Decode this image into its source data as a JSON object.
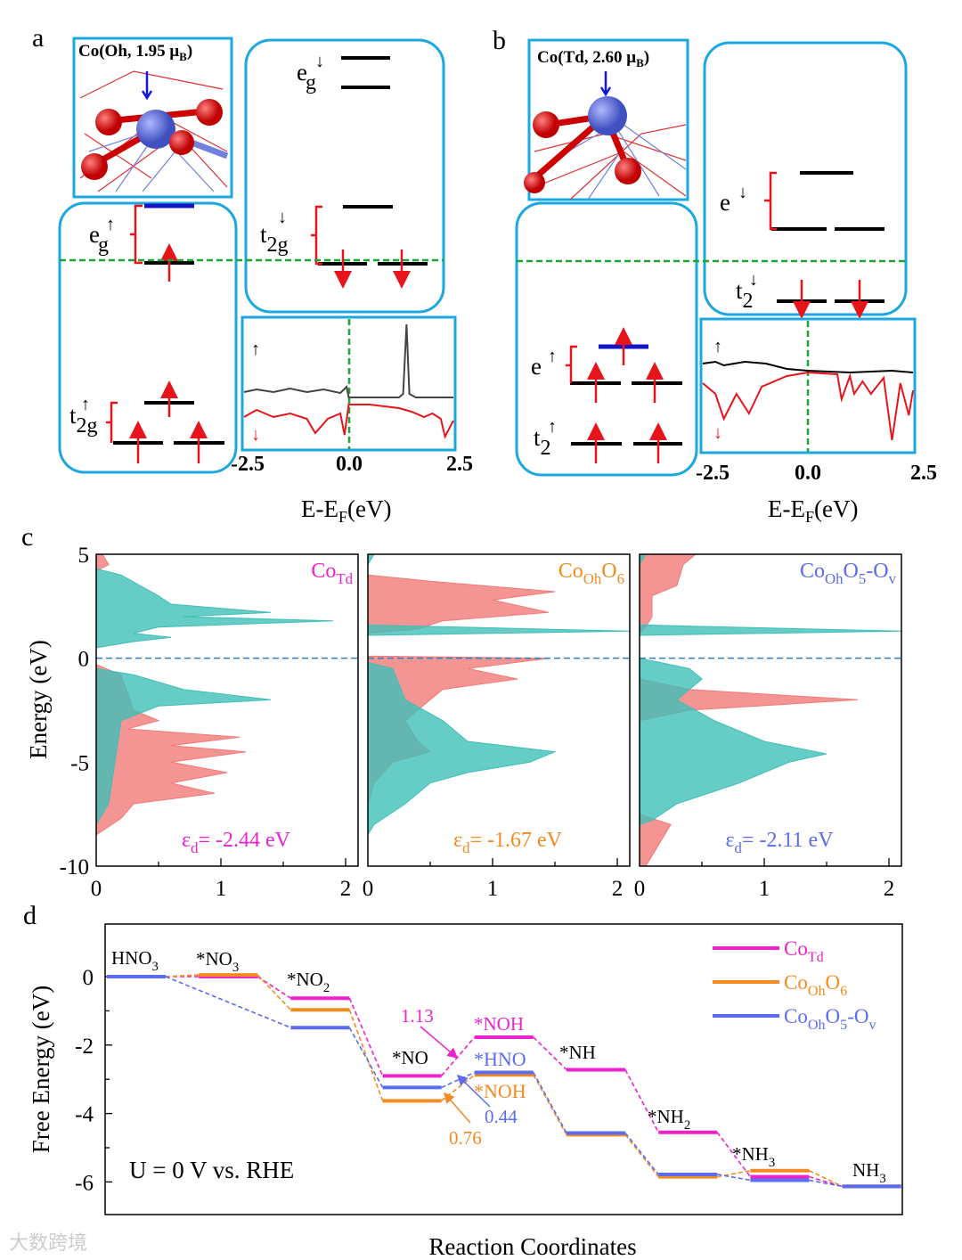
{
  "colors": {
    "box": "#1ba8e0",
    "fermi": "#1aa532",
    "spin_up_dos": "#3fbfb8",
    "spin_down_dos": "#f27a78",
    "CoTd": "#ee22cc",
    "CoOhO6": "#f48a20",
    "CoOhO5Ov": "#5b6cf0"
  },
  "panel_a": {
    "letter": "a",
    "structure_label": {
      "main": "Co(Oh, 1.95 μ",
      "sub": "B",
      "end": ")"
    },
    "levels": {
      "eg_up": {
        "main": "e",
        "sub": "g",
        "spin": "↑"
      },
      "t2g_up": {
        "main": "t",
        "sub": "2g",
        "spin": "↑"
      },
      "eg_down": {
        "main": "e",
        "sub": "g",
        "spin": "↓"
      },
      "t2g_down": {
        "main": "t",
        "sub": "2g",
        "spin": "↓"
      }
    },
    "inset": {
      "up_marker": "↑",
      "down_marker": "↓",
      "ticks": [
        "-2.5",
        "0.0",
        "2.5"
      ],
      "xlabel": {
        "main": "E-E",
        "sub": "F",
        "end": "(eV)"
      }
    }
  },
  "panel_b": {
    "letter": "b",
    "structure_label": {
      "main": "Co(Td, 2.60 μ",
      "sub": "B",
      "end": ")"
    },
    "levels": {
      "e_up": {
        "main": "e",
        "spin": "↑"
      },
      "t2_up": {
        "main": "t",
        "sub": "2",
        "spin": "↑"
      },
      "e_down": {
        "main": "e",
        "spin": "↓"
      },
      "t2_down": {
        "main": "t",
        "sub": "2",
        "spin": "↓"
      }
    },
    "inset": {
      "up_marker": "↑",
      "down_marker": "↓",
      "ticks": [
        "-2.5",
        "0.0",
        "2.5"
      ],
      "xlabel": {
        "main": "E-E",
        "sub": "F",
        "end": "(eV)"
      }
    }
  },
  "panel_c_letter": "c",
  "panel_d_letter": "d",
  "watermark": "大数跨境",
  "chart_data": [
    {
      "id": "a_inset",
      "type": "line",
      "xlabel": "E-EF(eV)",
      "xlim": [
        -2.5,
        2.5
      ],
      "series": [
        {
          "name": "spin up",
          "color": "#444444",
          "points": [
            [
              -2.5,
              0.6
            ],
            [
              -2.2,
              0.75
            ],
            [
              -1.8,
              0.6
            ],
            [
              -1.4,
              0.8
            ],
            [
              -1,
              0.6
            ],
            [
              -0.6,
              0.75
            ],
            [
              -0.2,
              0.55
            ],
            [
              -0.05,
              0.9
            ],
            [
              0,
              0.3
            ],
            [
              0.5,
              0.3
            ],
            [
              1.2,
              0.3
            ],
            [
              1.3,
              0.5
            ],
            [
              1.38,
              4.4
            ],
            [
              1.45,
              0.5
            ],
            [
              1.6,
              0.3
            ],
            [
              2,
              0.3
            ],
            [
              2.5,
              0.3
            ]
          ]
        },
        {
          "name": "spin down",
          "color": "#e8141b",
          "points": [
            [
              -2.5,
              -0.8
            ],
            [
              -2.2,
              -0.4
            ],
            [
              -1.8,
              -0.8
            ],
            [
              -1.4,
              -0.6
            ],
            [
              -1,
              -0.9
            ],
            [
              -0.8,
              -1.7
            ],
            [
              -0.5,
              -0.9
            ],
            [
              -0.2,
              -0.6
            ],
            [
              -0.1,
              -1.8
            ],
            [
              0,
              -0.1
            ],
            [
              0.5,
              -0.1
            ],
            [
              1.2,
              -0.3
            ],
            [
              1.5,
              -0.5
            ],
            [
              1.8,
              -0.8
            ],
            [
              2.0,
              -0.6
            ],
            [
              2.2,
              -0.9
            ],
            [
              2.3,
              -1.9
            ],
            [
              2.5,
              -1.0
            ]
          ]
        }
      ]
    },
    {
      "id": "b_inset",
      "type": "line",
      "xlabel": "E-EF(eV)",
      "xlim": [
        -2.5,
        2.5
      ],
      "series": [
        {
          "name": "spin up",
          "color": "#000000",
          "points": [
            [
              -2.5,
              0.5
            ],
            [
              -2.2,
              0.6
            ],
            [
              -2,
              0.4
            ],
            [
              -1.5,
              0.6
            ],
            [
              -1,
              0.5
            ],
            [
              -0.5,
              0.2
            ],
            [
              0,
              0.1
            ],
            [
              1,
              0
            ],
            [
              2,
              0.1
            ],
            [
              2.5,
              0
            ]
          ]
        },
        {
          "name": "spin down",
          "color": "#e8141b",
          "points": [
            [
              -2.5,
              -0.6
            ],
            [
              -2.2,
              -1.2
            ],
            [
              -2,
              -2.6
            ],
            [
              -1.7,
              -1.2
            ],
            [
              -1.4,
              -2.3
            ],
            [
              -1.1,
              -0.8
            ],
            [
              -0.5,
              -0.2
            ],
            [
              0,
              0
            ],
            [
              0.7,
              -0.1
            ],
            [
              0.8,
              -1.5
            ],
            [
              1,
              -0.2
            ],
            [
              1.1,
              -1.2
            ],
            [
              1.3,
              -0.5
            ],
            [
              1.5,
              -1.2
            ],
            [
              1.8,
              -0.3
            ],
            [
              2,
              -3.8
            ],
            [
              2.2,
              -0.6
            ],
            [
              2.4,
              -2.4
            ],
            [
              2.5,
              -1
            ]
          ]
        }
      ]
    },
    {
      "id": "c",
      "type": "area",
      "ylabel": "Energy (eV)",
      "ylim": [
        -10,
        5
      ],
      "xlim": [
        0,
        2
      ],
      "yticks": [
        "5",
        "0",
        "-5",
        "-10"
      ],
      "xticks": [
        "0",
        "1",
        "2"
      ],
      "panels": [
        {
          "title": {
            "main": "Co",
            "sub": "Td",
            "tail": "",
            "sub2": "",
            "end": ""
          },
          "color": "#ee22cc",
          "ed": {
            "eps": "ε",
            "sub": "d",
            "value": "= -2.44 eV"
          },
          "up": [
            [
              4.3,
              0
            ],
            [
              4,
              0.2
            ],
            [
              3.5,
              0.35
            ],
            [
              3,
              0.5
            ],
            [
              2.6,
              0.6
            ],
            [
              2.2,
              1.4
            ],
            [
              2.0,
              0.7
            ],
            [
              1.8,
              1.9
            ],
            [
              1.5,
              0.5
            ],
            [
              1.2,
              0.3
            ],
            [
              1.0,
              0.6
            ],
            [
              0.8,
              0.3
            ],
            [
              0.5,
              0
            ],
            [
              -0.5,
              0
            ],
            [
              -0.8,
              0.3
            ],
            [
              -1.5,
              0.7
            ],
            [
              -2.0,
              1.4
            ],
            [
              -2.3,
              0.5
            ],
            [
              -3,
              0.2
            ],
            [
              -5,
              0.15
            ],
            [
              -7,
              0.1
            ],
            [
              -8,
              0
            ]
          ],
          "down": [
            [
              5,
              0.05
            ],
            [
              4.5,
              0.1
            ],
            [
              4.2,
              0
            ],
            [
              -0.3,
              0
            ],
            [
              -0.8,
              0.2
            ],
            [
              -2.5,
              0.3
            ],
            [
              -3.0,
              0.5
            ],
            [
              -3.4,
              0.25
            ],
            [
              -3.8,
              1.15
            ],
            [
              -4.2,
              0.6
            ],
            [
              -4.5,
              1.2
            ],
            [
              -5,
              0.6
            ],
            [
              -5.5,
              1.05
            ],
            [
              -6,
              0.6
            ],
            [
              -6.5,
              0.95
            ],
            [
              -7,
              0.3
            ],
            [
              -7.7,
              0.2
            ],
            [
              -8.5,
              0
            ]
          ]
        },
        {
          "title": {
            "main": "Co",
            "sub": "Oh",
            "tail": "O",
            "sub2": "6",
            "end": ""
          },
          "color": "#f48a20",
          "ed": {
            "eps": "ε",
            "sub": "d",
            "value": "= -1.67 eV"
          },
          "up": [
            [
              5,
              0.05
            ],
            [
              4.5,
              0
            ],
            [
              1.6,
              0
            ],
            [
              1.3,
              2.1
            ],
            [
              1.1,
              0
            ],
            [
              -0.2,
              0
            ],
            [
              -0.5,
              0.2
            ],
            [
              -2,
              0.3
            ],
            [
              -3,
              0.6
            ],
            [
              -4,
              0.8
            ],
            [
              -4.5,
              1.5
            ],
            [
              -5,
              1.3
            ],
            [
              -5.5,
              0.8
            ],
            [
              -6,
              0.5
            ],
            [
              -7,
              0.3
            ],
            [
              -8,
              0.05
            ],
            [
              -8.5,
              0
            ]
          ],
          "down": [
            [
              4,
              0
            ],
            [
              3.7,
              0.5
            ],
            [
              3.2,
              1.5
            ],
            [
              2.8,
              1.0
            ],
            [
              2.2,
              1.45
            ],
            [
              1.8,
              0.6
            ],
            [
              1.4,
              0.4
            ],
            [
              1.2,
              0
            ],
            [
              0.1,
              0
            ],
            [
              0,
              1.45
            ],
            [
              -0.5,
              0.8
            ],
            [
              -1,
              1.2
            ],
            [
              -1.5,
              0.6
            ],
            [
              -2,
              0.5
            ],
            [
              -3,
              0.3
            ],
            [
              -4,
              0.4
            ],
            [
              -4.5,
              0.5
            ],
            [
              -5,
              0.2
            ],
            [
              -6,
              0.05
            ],
            [
              -7,
              0
            ]
          ]
        },
        {
          "title": {
            "main": "Co",
            "sub": "Oh",
            "tail": "O",
            "sub2": "5",
            "end": "-O",
            "sub3": "v"
          },
          "color": "#5b6cf0",
          "ed": {
            "eps": "ε",
            "sub": "d",
            "value": "= -2.11 eV"
          },
          "up": [
            [
              5,
              0.05
            ],
            [
              4.5,
              0
            ],
            [
              1.6,
              0
            ],
            [
              1.3,
              2.1
            ],
            [
              1.1,
              0
            ],
            [
              0,
              0
            ],
            [
              -0.5,
              0.4
            ],
            [
              -1,
              0.5
            ],
            [
              -2,
              0.3
            ],
            [
              -3,
              0.6
            ],
            [
              -4,
              1.0
            ],
            [
              -4.6,
              1.5
            ],
            [
              -5,
              1.2
            ],
            [
              -6,
              0.8
            ],
            [
              -7,
              0.3
            ],
            [
              -7.8,
              0.1
            ],
            [
              -8,
              0
            ]
          ],
          "down": [
            [
              5,
              0.45
            ],
            [
              4.5,
              0.35
            ],
            [
              3.5,
              0.3
            ],
            [
              3,
              0.1
            ],
            [
              2,
              0.1
            ],
            [
              1.5,
              0.05
            ],
            [
              1.2,
              0
            ],
            [
              -1,
              0
            ],
            [
              -1.5,
              0.4
            ],
            [
              -2,
              1.75
            ],
            [
              -2.5,
              0.4
            ],
            [
              -3,
              0
            ],
            [
              -7.5,
              0
            ],
            [
              -8,
              0.25
            ],
            [
              -9,
              0.15
            ],
            [
              -10,
              0.05
            ]
          ]
        }
      ]
    },
    {
      "id": "d",
      "type": "line",
      "title": "",
      "xlabel": "Reaction Coordinates",
      "ylabel": "Free Energy (eV)",
      "ylim": [
        -7,
        1.5
      ],
      "yticks": [
        "0",
        "-2",
        "-4",
        "-6"
      ],
      "condition": "U = 0 V vs. RHE",
      "step_labels": [
        {
          "main": "HNO",
          "sub": "3",
          "color": "#000"
        },
        {
          "main": "*NO",
          "sub": "3",
          "color": "#000"
        },
        {
          "main": "*NO",
          "sub": "2",
          "color": "#000"
        },
        {
          "main": "*NO",
          "sub": "",
          "color": "#000"
        },
        {
          "main": "*NOH",
          "sub": "",
          "color": "#ee22cc"
        },
        {
          "main": "*NH",
          "sub": "",
          "color": "#000"
        },
        {
          "main": "*NH",
          "sub": "2",
          "color": "#000"
        },
        {
          "main": "*NH",
          "sub": "3",
          "color": "#000"
        },
        {
          "main": "NH",
          "sub": "3",
          "color": "#000"
        }
      ],
      "extra_labels": [
        {
          "text": "*HNO",
          "color": "#5b6cf0"
        },
        {
          "text": "*NOH",
          "color": "#f48a20"
        }
      ],
      "barriers": [
        {
          "text": "1.13",
          "color": "#ee22cc"
        },
        {
          "text": "0.44",
          "color": "#5b6cf0"
        },
        {
          "text": "0.76",
          "color": "#f48a20"
        }
      ],
      "series": [
        {
          "name": {
            "main": "Co",
            "sub": "Td"
          },
          "color": "#ee22cc",
          "values": [
            0,
            0,
            -0.63,
            -2.9,
            -1.77,
            -2.72,
            -4.55,
            -5.85,
            -6.13
          ]
        },
        {
          "name": {
            "main": "Co",
            "sub": "Oh",
            "tail": "O",
            "sub2": "6"
          },
          "color": "#f48a20",
          "values": [
            0,
            0.05,
            -0.97,
            -3.63,
            -2.87,
            -4.62,
            -5.85,
            -5.67,
            -6.13
          ]
        },
        {
          "name": {
            "main": "Co",
            "sub": "Oh",
            "tail": "O",
            "sub2": "5",
            "end": "-O",
            "sub3": "v"
          },
          "color": "#5b6cf0",
          "values": [
            0,
            null,
            -1.49,
            -3.24,
            -2.8,
            -4.57,
            -5.78,
            -5.95,
            -6.13
          ]
        }
      ]
    }
  ]
}
